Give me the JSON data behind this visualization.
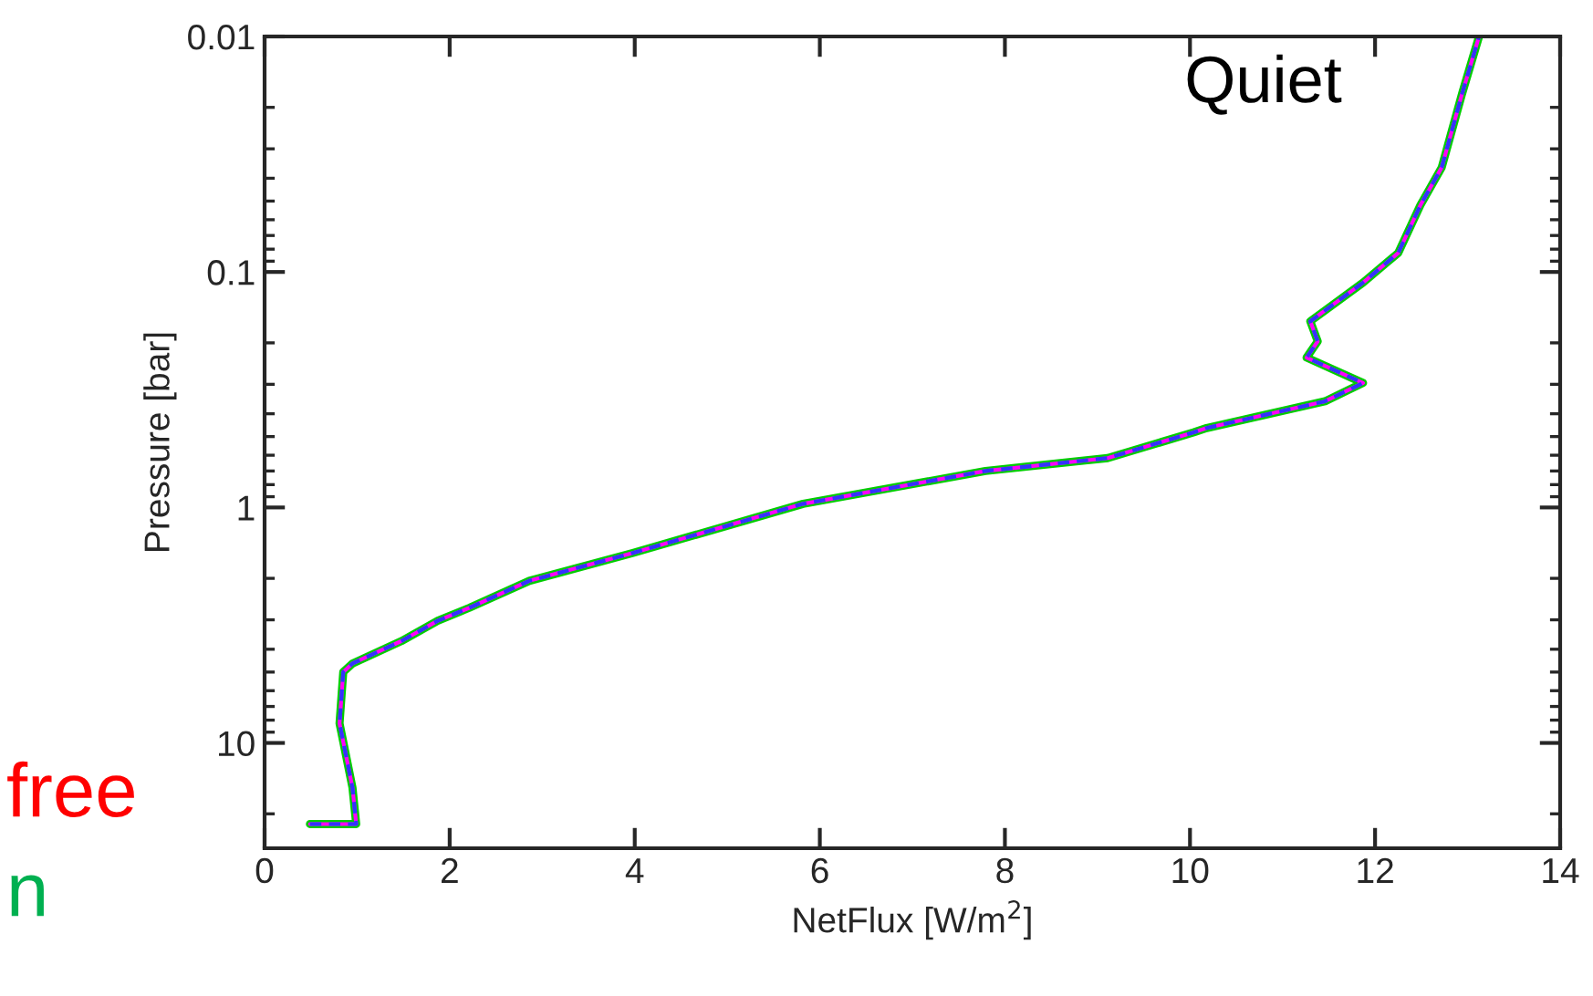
{
  "chart_data": {
    "type": "line",
    "xlabel": "NetFlux [W/m$^{2}$]",
    "ylabel": "Pressure [bar]",
    "log": "y",
    "xlim": [
      0,
      14
    ],
    "xticks": [
      0,
      2,
      4,
      6,
      8,
      10,
      12,
      14
    ],
    "ylim": [
      28,
      0.01
    ],
    "yticks": [
      0.01,
      0.1,
      1,
      10
    ],
    "grid": false,
    "legend": false,
    "x": [
      0.49,
      0.99,
      0.95,
      0.81,
      0.85,
      0.95,
      1.48,
      1.87,
      2.21,
      2.86,
      3.98,
      5.82,
      7.79,
      9.11,
      10.04,
      10.18,
      11.46,
      11.87,
      11.26,
      11.38,
      11.3,
      11.87,
      12.25,
      12.49,
      12.72,
      12.94,
      13.12
    ],
    "series": [
      {
        "color": "#00cc00",
        "line_style": "solid",
        "values": [
          22.1,
          22.1,
          15.5,
          8.26,
          5.0,
          4.6,
          3.69,
          3.03,
          2.67,
          2.05,
          1.56,
          0.965,
          0.7,
          0.617,
          0.48,
          0.46,
          0.354,
          0.296,
          0.231,
          0.197,
          0.162,
          0.111,
          0.083,
          0.052,
          0.036,
          0.0175,
          0.0101
        ]
      },
      {
        "color": "#ff00ff",
        "line_style": "solid",
        "values": [
          22.1,
          22.1,
          15.5,
          8.26,
          5.0,
          4.6,
          3.69,
          3.03,
          2.67,
          2.05,
          1.56,
          0.965,
          0.7,
          0.617,
          0.48,
          0.46,
          0.354,
          0.296,
          0.231,
          0.197,
          0.162,
          0.111,
          0.083,
          0.052,
          0.036,
          0.0175,
          0.0101
        ]
      },
      {
        "color": "#3333ff",
        "line_style": "dashed",
        "values": [
          22.1,
          22.1,
          15.5,
          8.26,
          5.0,
          4.6,
          3.69,
          3.03,
          2.67,
          2.05,
          1.56,
          0.965,
          0.7,
          0.617,
          0.48,
          0.46,
          0.354,
          0.296,
          0.231,
          0.197,
          0.162,
          0.111,
          0.083,
          0.052,
          0.036,
          0.0175,
          0.0101
        ]
      }
    ],
    "annotations": [
      "Quiet",
      "free",
      "n"
    ]
  }
}
